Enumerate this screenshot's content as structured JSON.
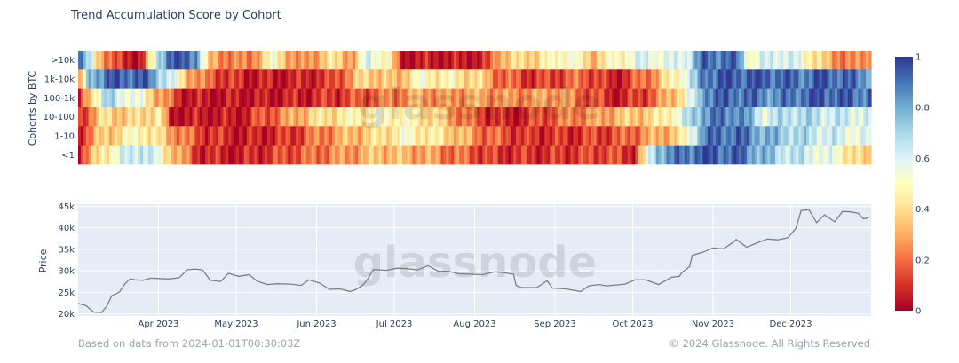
{
  "chart_data": {
    "type": "heatmap",
    "title": "Trend Accumulation Score by Cohort",
    "watermark": "glassnode",
    "heatmap": {
      "ylabel": "Cohorts by BTC",
      "cohorts": [
        ">10k",
        "1k-10k",
        "100-1k",
        "10-100",
        "1-10",
        "<1"
      ],
      "start_date": "2023-03-01",
      "end_date": "2023-12-31",
      "scores": {
        ">10k": [
          [
            "2023-03-01",
            0.9
          ],
          [
            "2023-03-08",
            0.4
          ],
          [
            "2023-03-15",
            0.1
          ],
          [
            "2023-03-25",
            0.05
          ],
          [
            "2023-04-01",
            0.75
          ],
          [
            "2023-04-05",
            0.95
          ],
          [
            "2023-04-15",
            0.9
          ],
          [
            "2023-04-20",
            0.3
          ],
          [
            "2023-05-05",
            0.2
          ],
          [
            "2023-05-15",
            0.5
          ],
          [
            "2023-05-25",
            0.2
          ],
          [
            "2023-06-05",
            0.4
          ],
          [
            "2023-06-15",
            0.3
          ],
          [
            "2023-06-20",
            0.6
          ],
          [
            "2023-06-28",
            0.5
          ],
          [
            "2023-07-03",
            0.05
          ],
          [
            "2023-07-20",
            0.05
          ],
          [
            "2023-08-05",
            0.06
          ],
          [
            "2023-08-10",
            0.35
          ],
          [
            "2023-08-25",
            0.4
          ],
          [
            "2023-09-05",
            0.55
          ],
          [
            "2023-09-15",
            0.35
          ],
          [
            "2023-09-25",
            0.5
          ],
          [
            "2023-10-05",
            0.6
          ],
          [
            "2023-10-15",
            0.55
          ],
          [
            "2023-10-22",
            0.65
          ],
          [
            "2023-10-28",
            0.92
          ],
          [
            "2023-11-10",
            0.9
          ],
          [
            "2023-11-15",
            0.5
          ],
          [
            "2023-11-25",
            0.65
          ],
          [
            "2023-12-05",
            0.55
          ],
          [
            "2023-12-15",
            0.3
          ],
          [
            "2023-12-25",
            0.2
          ],
          [
            "2023-12-31",
            0.3
          ]
        ],
        "1k-10k": [
          [
            "2023-03-01",
            0.2
          ],
          [
            "2023-03-05",
            0.8
          ],
          [
            "2023-03-15",
            0.95
          ],
          [
            "2023-03-28",
            0.9
          ],
          [
            "2023-04-05",
            0.6
          ],
          [
            "2023-04-10",
            0.4
          ],
          [
            "2023-04-18",
            0.2
          ],
          [
            "2023-05-01",
            0.08
          ],
          [
            "2023-05-15",
            0.05
          ],
          [
            "2023-06-05",
            0.1
          ],
          [
            "2023-06-20",
            0.4
          ],
          [
            "2023-07-01",
            0.3
          ],
          [
            "2023-07-10",
            0.5
          ],
          [
            "2023-07-20",
            0.45
          ],
          [
            "2023-08-01",
            0.4
          ],
          [
            "2023-08-10",
            0.2
          ],
          [
            "2023-08-25",
            0.1
          ],
          [
            "2023-09-10",
            0.2
          ],
          [
            "2023-09-25",
            0.05
          ],
          [
            "2023-10-10",
            0.3
          ],
          [
            "2023-10-25",
            0.7
          ],
          [
            "2023-10-28",
            0.92
          ],
          [
            "2023-11-15",
            0.95
          ],
          [
            "2023-12-05",
            0.9
          ],
          [
            "2023-12-15",
            0.95
          ],
          [
            "2023-12-31",
            0.85
          ]
        ],
        "100-1k": [
          [
            "2023-03-01",
            0.05
          ],
          [
            "2023-03-05",
            0.4
          ],
          [
            "2023-03-12",
            0.7
          ],
          [
            "2023-03-25",
            0.5
          ],
          [
            "2023-04-01",
            0.3
          ],
          [
            "2023-04-10",
            0.05
          ],
          [
            "2023-05-15",
            0.05
          ],
          [
            "2023-06-05",
            0.1
          ],
          [
            "2023-06-25",
            0.2
          ],
          [
            "2023-07-10",
            0.3
          ],
          [
            "2023-07-20",
            0.25
          ],
          [
            "2023-08-01",
            0.3
          ],
          [
            "2023-08-15",
            0.25
          ],
          [
            "2023-09-01",
            0.3
          ],
          [
            "2023-09-15",
            0.15
          ],
          [
            "2023-09-25",
            0.05
          ],
          [
            "2023-10-10",
            0.2
          ],
          [
            "2023-10-25",
            0.6
          ],
          [
            "2023-10-28",
            0.9
          ],
          [
            "2023-11-10",
            0.92
          ],
          [
            "2023-11-25",
            0.85
          ],
          [
            "2023-12-10",
            0.95
          ],
          [
            "2023-12-31",
            0.9
          ]
        ],
        "10-100": [
          [
            "2023-03-01",
            0.1
          ],
          [
            "2023-03-10",
            0.4
          ],
          [
            "2023-03-20",
            0.35
          ],
          [
            "2023-04-01",
            0.45
          ],
          [
            "2023-04-05",
            0.05
          ],
          [
            "2023-05-01",
            0.05
          ],
          [
            "2023-05-15",
            0.2
          ],
          [
            "2023-06-01",
            0.4
          ],
          [
            "2023-06-15",
            0.45
          ],
          [
            "2023-07-01",
            0.5
          ],
          [
            "2023-07-15",
            0.4
          ],
          [
            "2023-08-01",
            0.15
          ],
          [
            "2023-08-15",
            0.05
          ],
          [
            "2023-09-01",
            0.2
          ],
          [
            "2023-09-20",
            0.3
          ],
          [
            "2023-10-10",
            0.4
          ],
          [
            "2023-10-20",
            0.6
          ],
          [
            "2023-10-28",
            0.85
          ],
          [
            "2023-11-10",
            0.9
          ],
          [
            "2023-11-20",
            0.6
          ],
          [
            "2023-12-01",
            0.7
          ],
          [
            "2023-12-15",
            0.65
          ],
          [
            "2023-12-31",
            0.6
          ]
        ],
        "1-10": [
          [
            "2023-03-01",
            0.1
          ],
          [
            "2023-03-10",
            0.35
          ],
          [
            "2023-03-25",
            0.5
          ],
          [
            "2023-04-05",
            0.3
          ],
          [
            "2023-04-15",
            0.15
          ],
          [
            "2023-05-01",
            0.05
          ],
          [
            "2023-05-20",
            0.1
          ],
          [
            "2023-06-10",
            0.3
          ],
          [
            "2023-06-25",
            0.4
          ],
          [
            "2023-07-05",
            0.5
          ],
          [
            "2023-07-20",
            0.4
          ],
          [
            "2023-08-05",
            0.2
          ],
          [
            "2023-08-20",
            0.1
          ],
          [
            "2023-09-05",
            0.1
          ],
          [
            "2023-09-25",
            0.15
          ],
          [
            "2023-10-10",
            0.3
          ],
          [
            "2023-10-20",
            0.4
          ],
          [
            "2023-10-28",
            0.88
          ],
          [
            "2023-11-10",
            0.92
          ],
          [
            "2023-11-25",
            0.75
          ],
          [
            "2023-12-10",
            0.65
          ],
          [
            "2023-12-31",
            0.55
          ]
        ],
        "<1": [
          [
            "2023-03-01",
            0.1
          ],
          [
            "2023-03-10",
            0.45
          ],
          [
            "2023-03-25",
            0.7
          ],
          [
            "2023-04-05",
            0.4
          ],
          [
            "2023-04-15",
            0.1
          ],
          [
            "2023-05-01",
            0.05
          ],
          [
            "2023-05-20",
            0.15
          ],
          [
            "2023-06-10",
            0.25
          ],
          [
            "2023-06-25",
            0.35
          ],
          [
            "2023-07-10",
            0.3
          ],
          [
            "2023-07-25",
            0.2
          ],
          [
            "2023-08-10",
            0.1
          ],
          [
            "2023-09-01",
            0.1
          ],
          [
            "2023-09-20",
            0.15
          ],
          [
            "2023-10-01",
            0.1
          ],
          [
            "2023-10-10",
            0.8
          ],
          [
            "2023-10-20",
            0.9
          ],
          [
            "2023-10-28",
            0.95
          ],
          [
            "2023-11-10",
            0.92
          ],
          [
            "2023-11-25",
            0.7
          ],
          [
            "2023-12-10",
            0.6
          ],
          [
            "2023-12-20",
            0.5
          ],
          [
            "2023-12-31",
            0.3
          ]
        ]
      },
      "colorscale": [
        "#a50026",
        "#d73027",
        "#f46d43",
        "#fdae61",
        "#fee090",
        "#ffffbf",
        "#e0f3f8",
        "#abd9e9",
        "#74add1",
        "#4575b4",
        "#313695"
      ]
    },
    "colorbar": {
      "range": [
        0,
        1
      ],
      "ticks": [
        "0",
        "0.2",
        "0.4",
        "0.6",
        "0.8",
        "1"
      ]
    },
    "price": {
      "ylabel": "Price",
      "ylim": [
        19500,
        45500
      ],
      "yticks": [
        "20k",
        "25k",
        "30k",
        "35k",
        "40k",
        "45k"
      ],
      "ytick_values": [
        20000,
        25000,
        30000,
        35000,
        40000,
        45000
      ],
      "line_color": "#7f7f7f",
      "series": [
        [
          "2023-03-01",
          22400
        ],
        [
          "2023-03-04",
          21900
        ],
        [
          "2023-03-07",
          20400
        ],
        [
          "2023-03-10",
          20300
        ],
        [
          "2023-03-12",
          21700
        ],
        [
          "2023-03-14",
          24200
        ],
        [
          "2023-03-17",
          25100
        ],
        [
          "2023-03-19",
          26900
        ],
        [
          "2023-03-21",
          28100
        ],
        [
          "2023-03-23",
          27900
        ],
        [
          "2023-03-26",
          27800
        ],
        [
          "2023-03-29",
          28300
        ],
        [
          "2023-04-01",
          28200
        ],
        [
          "2023-04-05",
          28100
        ],
        [
          "2023-04-09",
          28400
        ],
        [
          "2023-04-12",
          30200
        ],
        [
          "2023-04-15",
          30400
        ],
        [
          "2023-04-18",
          30200
        ],
        [
          "2023-04-21",
          27800
        ],
        [
          "2023-04-25",
          27500
        ],
        [
          "2023-04-28",
          29400
        ],
        [
          "2023-05-02",
          28700
        ],
        [
          "2023-05-06",
          29100
        ],
        [
          "2023-05-09",
          27600
        ],
        [
          "2023-05-13",
          26800
        ],
        [
          "2023-05-17",
          27000
        ],
        [
          "2023-05-22",
          26900
        ],
        [
          "2023-05-26",
          26600
        ],
        [
          "2023-05-29",
          27900
        ],
        [
          "2023-06-02",
          27200
        ],
        [
          "2023-06-06",
          25700
        ],
        [
          "2023-06-10",
          25800
        ],
        [
          "2023-06-14",
          25200
        ],
        [
          "2023-06-16",
          25600
        ],
        [
          "2023-06-19",
          26700
        ],
        [
          "2023-06-21",
          28300
        ],
        [
          "2023-06-23",
          30300
        ],
        [
          "2023-06-28",
          30100
        ],
        [
          "2023-07-02",
          30600
        ],
        [
          "2023-07-06",
          30500
        ],
        [
          "2023-07-10",
          30200
        ],
        [
          "2023-07-14",
          31200
        ],
        [
          "2023-07-18",
          29900
        ],
        [
          "2023-07-22",
          29900
        ],
        [
          "2023-07-26",
          29300
        ],
        [
          "2023-07-31",
          29200
        ],
        [
          "2023-08-04",
          29100
        ],
        [
          "2023-08-09",
          29800
        ],
        [
          "2023-08-14",
          29400
        ],
        [
          "2023-08-16",
          29200
        ],
        [
          "2023-08-17",
          26600
        ],
        [
          "2023-08-19",
          26100
        ],
        [
          "2023-08-25",
          26100
        ],
        [
          "2023-08-29",
          27700
        ],
        [
          "2023-08-31",
          26000
        ],
        [
          "2023-09-05",
          25800
        ],
        [
          "2023-09-11",
          25200
        ],
        [
          "2023-09-14",
          26500
        ],
        [
          "2023-09-18",
          26800
        ],
        [
          "2023-09-21",
          26500
        ],
        [
          "2023-09-28",
          26900
        ],
        [
          "2023-10-02",
          27900
        ],
        [
          "2023-10-06",
          27900
        ],
        [
          "2023-10-11",
          26800
        ],
        [
          "2023-10-16",
          28500
        ],
        [
          "2023-10-19",
          28700
        ],
        [
          "2023-10-20",
          29600
        ],
        [
          "2023-10-23",
          31000
        ],
        [
          "2023-10-24",
          33600
        ],
        [
          "2023-10-28",
          34300
        ],
        [
          "2023-11-01",
          35300
        ],
        [
          "2023-11-05",
          35100
        ],
        [
          "2023-11-09",
          36700
        ],
        [
          "2023-11-10",
          37300
        ],
        [
          "2023-11-14",
          35500
        ],
        [
          "2023-11-18",
          36500
        ],
        [
          "2023-11-22",
          37400
        ],
        [
          "2023-11-26",
          37200
        ],
        [
          "2023-11-30",
          37700
        ],
        [
          "2023-12-03",
          39900
        ],
        [
          "2023-12-05",
          44000
        ],
        [
          "2023-12-08",
          44200
        ],
        [
          "2023-12-11",
          41200
        ],
        [
          "2023-12-14",
          43000
        ],
        [
          "2023-12-18",
          41400
        ],
        [
          "2023-12-21",
          43800
        ],
        [
          "2023-12-24",
          43700
        ],
        [
          "2023-12-27",
          43400
        ],
        [
          "2023-12-29",
          42100
        ],
        [
          "2023-12-31",
          42300
        ]
      ]
    },
    "x_ticks": [
      {
        "label": "Apr 2023",
        "date": "2023-04-01"
      },
      {
        "label": "May 2023",
        "date": "2023-05-01"
      },
      {
        "label": "Jun 2023",
        "date": "2023-06-01"
      },
      {
        "label": "Jul 2023",
        "date": "2023-07-01"
      },
      {
        "label": "Aug 2023",
        "date": "2023-08-01"
      },
      {
        "label": "Sep 2023",
        "date": "2023-09-01"
      },
      {
        "label": "Oct 2023",
        "date": "2023-10-01"
      },
      {
        "label": "Nov 2023",
        "date": "2023-11-01"
      },
      {
        "label": "Dec 2023",
        "date": "2023-12-01"
      }
    ]
  },
  "footer": {
    "left": "Based on data from 2024-01-01T00:30:03Z",
    "right": "© 2024 Glassnode. All Rights Reserved"
  }
}
